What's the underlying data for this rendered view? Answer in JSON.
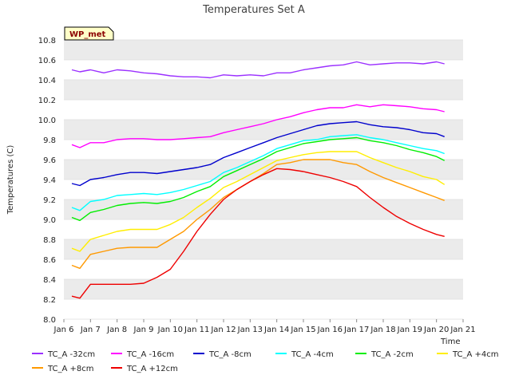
{
  "chart_data": {
    "type": "line",
    "title": "Temperatures Set A",
    "xlabel": "Time",
    "ylabel": "Temperatures (C)",
    "badge": "WP_met",
    "xlim": [
      6,
      21
    ],
    "ylim": [
      8.0,
      10.8
    ],
    "x_ticks": [
      "Jan 6",
      "Jan 7",
      "Jan 8",
      "Jan 9",
      "Jan 10",
      "Jan 11",
      "Jan 12",
      "Jan 13",
      "Jan 14",
      "Jan 15",
      "Jan 16",
      "Jan 17",
      "Jan 18",
      "Jan 19",
      "Jan 20",
      "Jan 21"
    ],
    "y_ticks": [
      "8.0",
      "8.2",
      "8.4",
      "8.6",
      "8.8",
      "9.0",
      "9.2",
      "9.4",
      "9.6",
      "9.8",
      "10.0",
      "10.2",
      "10.4",
      "10.6",
      "10.8"
    ],
    "grid": "horizontal alternating bands",
    "legend": "bottom",
    "x": [
      6.3,
      6.6,
      7.0,
      7.5,
      8.0,
      8.5,
      9.0,
      9.5,
      10.0,
      10.5,
      11.0,
      11.5,
      12.0,
      12.5,
      13.0,
      13.5,
      14.0,
      14.5,
      15.0,
      15.5,
      16.0,
      16.5,
      17.0,
      17.5,
      18.0,
      18.5,
      19.0,
      19.5,
      20.0,
      20.3
    ],
    "series": [
      {
        "name": "TC_A -32cm",
        "color": "#9b30ff",
        "values": [
          10.5,
          10.48,
          10.5,
          10.47,
          10.5,
          10.49,
          10.47,
          10.46,
          10.44,
          10.43,
          10.43,
          10.42,
          10.45,
          10.44,
          10.45,
          10.44,
          10.47,
          10.47,
          10.5,
          10.52,
          10.54,
          10.55,
          10.58,
          10.55,
          10.56,
          10.57,
          10.57,
          10.56,
          10.58,
          10.56
        ]
      },
      {
        "name": "TC_A -16cm",
        "color": "#ff00ff",
        "values": [
          9.75,
          9.72,
          9.77,
          9.77,
          9.8,
          9.81,
          9.81,
          9.8,
          9.8,
          9.81,
          9.82,
          9.83,
          9.87,
          9.9,
          9.93,
          9.96,
          10.0,
          10.03,
          10.07,
          10.1,
          10.12,
          10.12,
          10.15,
          10.13,
          10.15,
          10.14,
          10.13,
          10.11,
          10.1,
          10.08
        ]
      },
      {
        "name": "TC_A -8cm",
        "color": "#0000cd",
        "values": [
          9.36,
          9.34,
          9.4,
          9.42,
          9.45,
          9.47,
          9.47,
          9.46,
          9.48,
          9.5,
          9.52,
          9.55,
          9.62,
          9.67,
          9.72,
          9.77,
          9.82,
          9.86,
          9.9,
          9.94,
          9.96,
          9.97,
          9.98,
          9.95,
          9.93,
          9.92,
          9.9,
          9.87,
          9.86,
          9.83
        ]
      },
      {
        "name": "TC_A -4cm",
        "color": "#00ffff",
        "values": [
          9.12,
          9.09,
          9.18,
          9.2,
          9.24,
          9.25,
          9.26,
          9.25,
          9.27,
          9.3,
          9.34,
          9.38,
          9.47,
          9.52,
          9.58,
          9.64,
          9.71,
          9.75,
          9.79,
          9.8,
          9.83,
          9.84,
          9.85,
          9.82,
          9.8,
          9.77,
          9.74,
          9.71,
          9.69,
          9.66
        ]
      },
      {
        "name": "TC_A -2cm",
        "color": "#00ee00",
        "values": [
          9.02,
          8.99,
          9.07,
          9.1,
          9.14,
          9.16,
          9.17,
          9.16,
          9.18,
          9.22,
          9.28,
          9.33,
          9.43,
          9.49,
          9.55,
          9.61,
          9.68,
          9.72,
          9.76,
          9.78,
          9.8,
          9.81,
          9.82,
          9.79,
          9.77,
          9.74,
          9.7,
          9.67,
          9.63,
          9.59
        ]
      },
      {
        "name": "TC_A +4cm",
        "color": "#ffee00",
        "values": [
          8.71,
          8.68,
          8.8,
          8.84,
          8.88,
          8.9,
          8.9,
          8.9,
          8.95,
          9.02,
          9.12,
          9.21,
          9.32,
          9.38,
          9.45,
          9.52,
          9.59,
          9.62,
          9.65,
          9.67,
          9.68,
          9.68,
          9.68,
          9.62,
          9.57,
          9.52,
          9.48,
          9.43,
          9.4,
          9.35
        ]
      },
      {
        "name": "TC_A +8cm",
        "color": "#ff9900",
        "values": [
          8.54,
          8.51,
          8.65,
          8.68,
          8.71,
          8.72,
          8.72,
          8.72,
          8.8,
          8.88,
          9.0,
          9.1,
          9.22,
          9.3,
          9.38,
          9.46,
          9.55,
          9.57,
          9.6,
          9.6,
          9.6,
          9.57,
          9.55,
          9.48,
          9.42,
          9.37,
          9.32,
          9.27,
          9.22,
          9.19
        ]
      },
      {
        "name": "TC_A +12cm",
        "color": "#ee0000",
        "values": [
          8.23,
          8.21,
          8.35,
          8.35,
          8.35,
          8.35,
          8.36,
          8.42,
          8.5,
          8.68,
          8.88,
          9.05,
          9.2,
          9.3,
          9.38,
          9.45,
          9.51,
          9.5,
          9.48,
          9.45,
          9.42,
          9.38,
          9.33,
          9.22,
          9.12,
          9.03,
          8.96,
          8.9,
          8.85,
          8.83
        ]
      }
    ]
  }
}
